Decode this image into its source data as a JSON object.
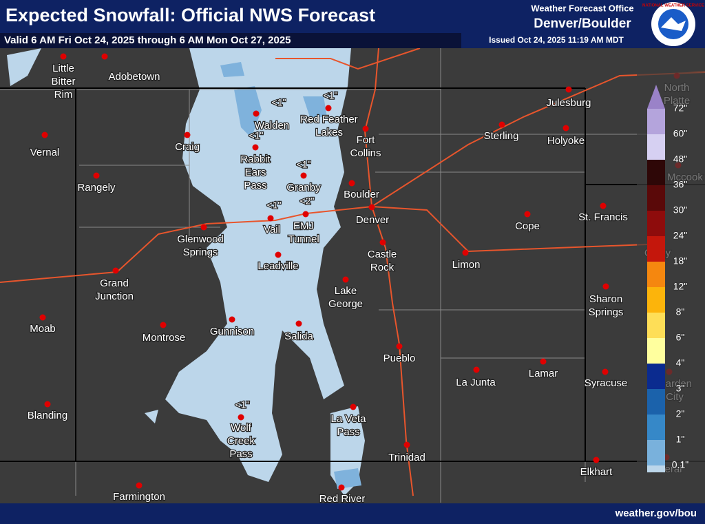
{
  "header": {
    "title": "Expected Snowfall: Official NWS Forecast",
    "valid": "Valid 6 AM Fri Oct 24, 2025 through 6 AM Mon Oct 27, 2025",
    "office_label": "Weather Forecast Office",
    "office": "Denver/Boulder",
    "issued": "Issued Oct 24, 2025 11:19 AM MDT",
    "logo_text": "NATIONAL WEATHER SERVICE"
  },
  "cities": [
    {
      "lines": [
        "Little",
        "Bitter",
        "Rim"
      ]
    },
    {
      "lines": [
        "Adobetown"
      ]
    },
    {
      "lines": [
        "Vernal"
      ]
    },
    {
      "lines": [
        "Rangely"
      ]
    },
    {
      "lines": [
        "Craig"
      ]
    },
    {
      "lines": [
        "Walden"
      ]
    },
    {
      "lines": [
        "Red Feather",
        "Lakes"
      ]
    },
    {
      "lines": [
        "Fort",
        "Collins"
      ]
    },
    {
      "lines": [
        "Rabbit",
        "Ears",
        "Pass"
      ]
    },
    {
      "lines": [
        "Granby"
      ]
    },
    {
      "lines": [
        "Boulder"
      ]
    },
    {
      "lines": [
        "Denver"
      ]
    },
    {
      "lines": [
        "Glenwood",
        "Springs"
      ]
    },
    {
      "lines": [
        "Vail"
      ]
    },
    {
      "lines": [
        "EMJ",
        "Tunnel"
      ]
    },
    {
      "lines": [
        "Leadville"
      ]
    },
    {
      "lines": [
        "Castle",
        "Rock"
      ]
    },
    {
      "lines": [
        "Limon"
      ]
    },
    {
      "lines": [
        "Cope"
      ]
    },
    {
      "lines": [
        "St. Francis"
      ]
    },
    {
      "lines": [
        "Sterling"
      ]
    },
    {
      "lines": [
        "Julesburg"
      ]
    },
    {
      "lines": [
        "Holyoke"
      ]
    },
    {
      "lines": [
        "Grand",
        "Junction"
      ]
    },
    {
      "lines": [
        "Moab"
      ]
    },
    {
      "lines": [
        "Montrose"
      ]
    },
    {
      "lines": [
        "Gunnison"
      ]
    },
    {
      "lines": [
        "Salida"
      ]
    },
    {
      "lines": [
        "Lake",
        "George"
      ]
    },
    {
      "lines": [
        "Sharon",
        "Springs"
      ]
    },
    {
      "lines": [
        "Pueblo"
      ]
    },
    {
      "lines": [
        "La Junta"
      ]
    },
    {
      "lines": [
        "Lamar"
      ]
    },
    {
      "lines": [
        "Syracuse"
      ]
    },
    {
      "lines": [
        "Blanding"
      ]
    },
    {
      "lines": [
        "Wolf",
        "Creek",
        "Pass"
      ]
    },
    {
      "lines": [
        "La Veta",
        "Pass"
      ]
    },
    {
      "lines": [
        "Trinidad"
      ]
    },
    {
      "lines": [
        "Elkhart"
      ]
    },
    {
      "lines": [
        "Farmington"
      ]
    },
    {
      "lines": [
        "Red River"
      ]
    },
    {
      "lines": [
        "North",
        "Platte"
      ]
    },
    {
      "lines": [
        "Mccook"
      ]
    },
    {
      "lines": [
        "Colby"
      ]
    },
    {
      "lines": [
        "Garden",
        "City"
      ]
    },
    {
      "lines": [
        "Liberal"
      ]
    }
  ],
  "amounts": [
    "<1\"",
    "<1\"",
    "<1\"",
    "<1\"",
    "<1\"",
    "<2\"",
    "<1\""
  ],
  "legend": [
    {
      "label": "72\"",
      "color": "#9a82c8"
    },
    {
      "label": "60\"",
      "color": "#b4a4dc"
    },
    {
      "label": "48\"",
      "color": "#d6d0f2"
    },
    {
      "label": "36\"",
      "color": "#2e0707"
    },
    {
      "label": "30\"",
      "color": "#5a0909"
    },
    {
      "label": "24\"",
      "color": "#8e0c0c"
    },
    {
      "label": "18\"",
      "color": "#c4170c"
    },
    {
      "label": "12\"",
      "color": "#f5870f"
    },
    {
      "label": "8\"",
      "color": "#fcb40b"
    },
    {
      "label": "6\"",
      "color": "#fede57"
    },
    {
      "label": "4\"",
      "color": "#ffff9e"
    },
    {
      "label": "3\"",
      "color": "#0b2b8f"
    },
    {
      "label": "2\"",
      "color": "#1b62ab"
    },
    {
      "label": "1\"",
      "color": "#3688c8"
    },
    {
      "label": "0.1\"",
      "color": "#79b1dc"
    }
  ],
  "footer": "weather.gov/bou"
}
